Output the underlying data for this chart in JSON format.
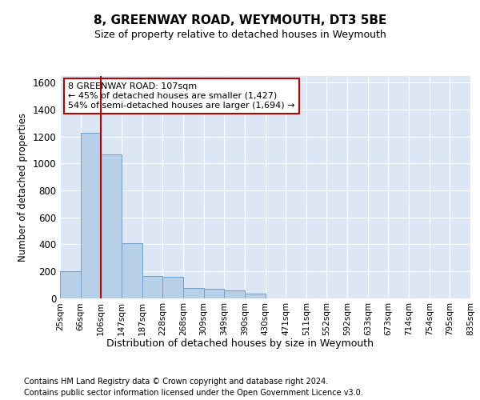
{
  "title1": "8, GREENWAY ROAD, WEYMOUTH, DT3 5BE",
  "title2": "Size of property relative to detached houses in Weymouth",
  "xlabel": "Distribution of detached houses by size in Weymouth",
  "ylabel": "Number of detached properties",
  "footer1": "Contains HM Land Registry data © Crown copyright and database right 2024.",
  "footer2": "Contains public sector information licensed under the Open Government Licence v3.0.",
  "bar_heights": [
    200,
    1230,
    1065,
    405,
    165,
    160,
    75,
    70,
    55,
    30,
    0,
    0,
    0,
    0,
    0,
    0,
    0,
    0,
    0,
    0
  ],
  "bar_color": "#b8cfe8",
  "bar_edgecolor": "#6fa0cc",
  "bg_color": "#dce6f5",
  "grid_color": "#ffffff",
  "vline_bin": 2,
  "vline_color": "#bb0000",
  "annotation_line1": "8 GREENWAY ROAD: 107sqm",
  "annotation_line2": "← 45% of detached houses are smaller (1,427)",
  "annotation_line3": "54% of semi-detached houses are larger (1,694) →",
  "annotation_box_color": "#bb0000",
  "ylim": [
    0,
    1650
  ],
  "yticks": [
    0,
    200,
    400,
    600,
    800,
    1000,
    1200,
    1400,
    1600
  ],
  "tick_labels": [
    "25sqm",
    "66sqm",
    "106sqm",
    "147sqm",
    "187sqm",
    "228sqm",
    "268sqm",
    "309sqm",
    "349sqm",
    "390sqm",
    "430sqm",
    "471sqm",
    "511sqm",
    "552sqm",
    "592sqm",
    "633sqm",
    "673sqm",
    "714sqm",
    "754sqm",
    "795sqm",
    "835sqm"
  ],
  "n_bins": 20
}
